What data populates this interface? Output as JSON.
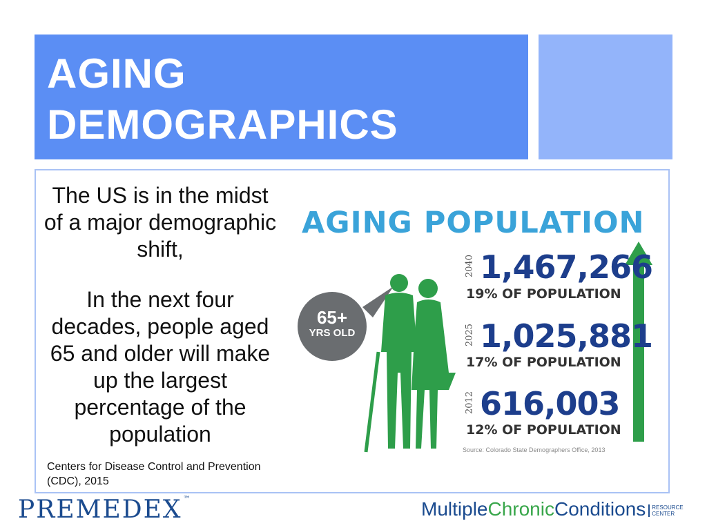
{
  "slide": {
    "title_line1": "AGING",
    "title_line2": "DEMOGRAPHICS",
    "paragraph1": "The US is in the midst of a major demographic shift,",
    "paragraph2": "In the next four decades, people aged 65 and older will make up the largest percentage of the population",
    "source": "Centers for Disease Control and Prevention (CDC), 2015"
  },
  "infographic": {
    "title": "AGING POPULATION",
    "bubble_big": "65+",
    "bubble_small": "YRS OLD",
    "rows": [
      {
        "year": "2040",
        "number": "1,467,266",
        "percent": "19% OF POPULATION"
      },
      {
        "year": "2025",
        "number": "1,025,881",
        "percent": "17% OF POPULATION"
      },
      {
        "year": "2012",
        "number": "616,003",
        "percent": "12% OF POPULATION"
      }
    ],
    "source": "Source: Colorado State Demographers Office, 2013"
  },
  "logos": {
    "premedex": "PREMEDEX",
    "premedex_tm": "™",
    "mcc_part1": "Multiple",
    "mcc_part2": "Chronic",
    "mcc_part3": "Conditions",
    "mcc_rc_line1": "RESOURCE",
    "mcc_rc_line2": "CENTER"
  },
  "colors": {
    "title_bar": "#5b8ef4",
    "accent_box": "#93b4fa",
    "infographic_title": "#3aa3d9",
    "numbers": "#1d3e8c",
    "figures_green": "#2e9e4a",
    "bubble_gray": "#6a6d70"
  }
}
